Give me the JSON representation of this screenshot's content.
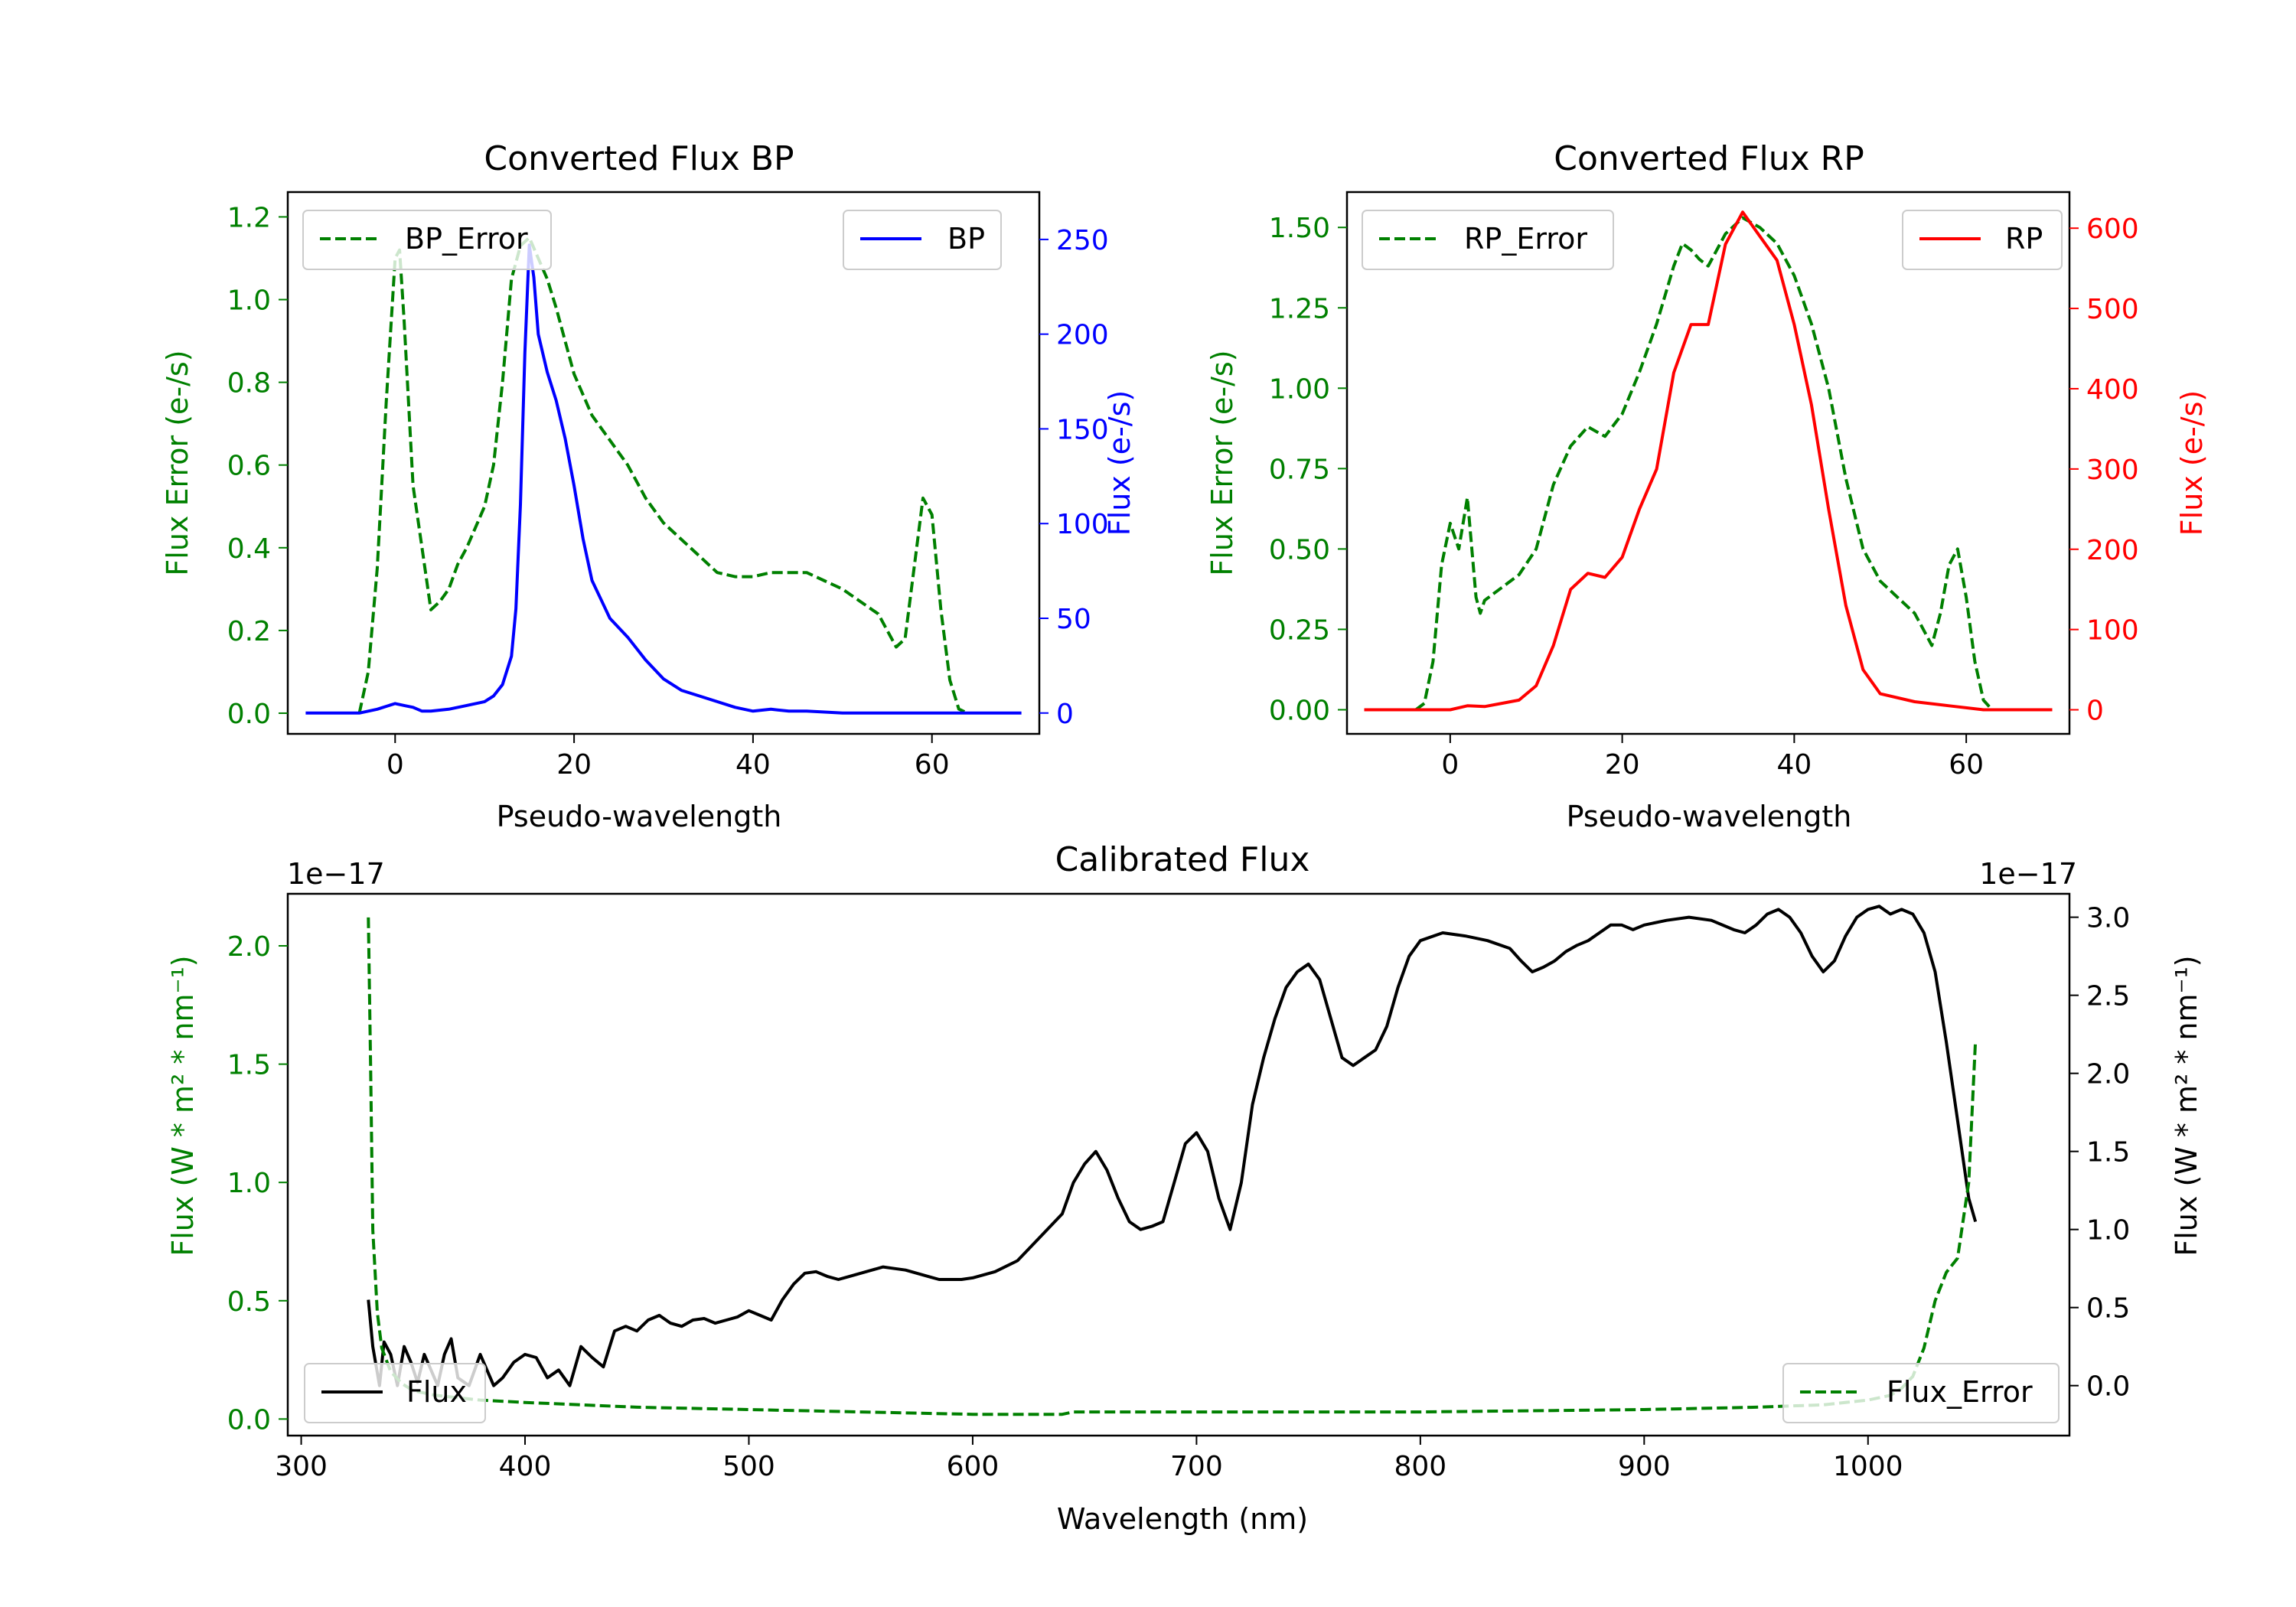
{
  "colors": {
    "bp_error": "#008000",
    "bp": "#0000ff",
    "rp_error": "#008000",
    "rp": "#ff0000",
    "flux": "#000000",
    "flux_error": "#008000"
  },
  "chart_data": [
    {
      "id": "bp",
      "type": "line",
      "title": "Converted Flux BP",
      "xlabel": "Pseudo-wavelength",
      "ylabel_left": "Flux Error (e-/s)",
      "ylabel_right": "Flux (e-/s)",
      "xlim": [
        -12,
        72
      ],
      "ylim_left": [
        -0.05,
        1.26
      ],
      "ylim_right": [
        -11,
        275
      ],
      "xticks": [
        0,
        20,
        40,
        60
      ],
      "yticks_left": [
        0.0,
        0.2,
        0.4,
        0.6,
        0.8,
        1.0,
        1.2
      ],
      "yticks_left_labels": [
        "0.0",
        "0.2",
        "0.4",
        "0.6",
        "0.8",
        "1.0",
        "1.2"
      ],
      "yticks_right": [
        0,
        50,
        100,
        150,
        200,
        250
      ],
      "yticks_right_labels": [
        "0",
        "50",
        "100",
        "150",
        "200",
        "250"
      ],
      "legend_left": {
        "label": "BP_Error",
        "loc": "upper left"
      },
      "legend_right": {
        "label": "BP",
        "loc": "upper right"
      },
      "series": [
        {
          "name": "BP_Error",
          "axis": "left",
          "style": "dashed",
          "color": "#008000",
          "x": [
            -4,
            -3,
            -2,
            -1,
            0,
            0.5,
            1,
            2,
            3,
            4,
            5,
            6,
            7,
            8,
            9,
            10,
            11,
            12,
            13,
            14,
            15,
            16,
            17,
            18,
            19,
            20,
            22,
            24,
            26,
            28,
            30,
            32,
            34,
            36,
            38,
            40,
            42,
            44,
            46,
            48,
            50,
            52,
            54,
            55,
            56,
            57,
            58,
            59,
            60,
            61,
            62,
            63,
            64
          ],
          "y": [
            0.0,
            0.1,
            0.35,
            0.75,
            1.1,
            1.12,
            0.95,
            0.55,
            0.4,
            0.25,
            0.27,
            0.3,
            0.36,
            0.4,
            0.45,
            0.5,
            0.6,
            0.8,
            1.05,
            1.13,
            1.15,
            1.1,
            1.05,
            0.98,
            0.9,
            0.82,
            0.72,
            0.66,
            0.6,
            0.52,
            0.46,
            0.42,
            0.38,
            0.34,
            0.33,
            0.33,
            0.34,
            0.34,
            0.34,
            0.32,
            0.3,
            0.27,
            0.24,
            0.2,
            0.16,
            0.18,
            0.35,
            0.52,
            0.48,
            0.25,
            0.08,
            0.01,
            0.0
          ]
        },
        {
          "name": "BP",
          "axis": "right",
          "style": "solid",
          "color": "#0000ff",
          "x": [
            -10,
            -6,
            -4,
            -2,
            0,
            1,
            2,
            3,
            4,
            6,
            8,
            10,
            11,
            12,
            13,
            13.5,
            14,
            14.5,
            15,
            15.5,
            16,
            17,
            18,
            19,
            20,
            21,
            22,
            23,
            24,
            26,
            28,
            30,
            32,
            34,
            36,
            38,
            40,
            42,
            44,
            46,
            50,
            55,
            60,
            65,
            70
          ],
          "y": [
            0,
            0,
            0,
            2,
            5,
            4,
            3,
            1,
            1,
            2,
            4,
            6,
            9,
            15,
            30,
            55,
            110,
            190,
            247,
            230,
            200,
            180,
            165,
            145,
            120,
            92,
            70,
            60,
            50,
            40,
            28,
            18,
            12,
            9,
            6,
            3,
            1,
            2,
            1,
            1,
            0,
            0,
            0,
            0,
            0
          ]
        }
      ]
    },
    {
      "id": "rp",
      "type": "line",
      "title": "Converted Flux RP",
      "xlabel": "Pseudo-wavelength",
      "ylabel_left": "Flux Error (e-/s)",
      "ylabel_right": "Flux (e-/s)",
      "xlim": [
        -12,
        72
      ],
      "ylim_left": [
        -0.075,
        1.61
      ],
      "ylim_right": [
        -30,
        645
      ],
      "xticks": [
        0,
        20,
        40,
        60
      ],
      "yticks_left": [
        0.0,
        0.25,
        0.5,
        0.75,
        1.0,
        1.25,
        1.5
      ],
      "yticks_left_labels": [
        "0.00",
        "0.25",
        "0.50",
        "0.75",
        "1.00",
        "1.25",
        "1.50"
      ],
      "yticks_right": [
        0,
        100,
        200,
        300,
        400,
        500,
        600
      ],
      "yticks_right_labels": [
        "0",
        "100",
        "200",
        "300",
        "400",
        "500",
        "600"
      ],
      "legend_left": {
        "label": "RP_Error",
        "loc": "upper left"
      },
      "legend_right": {
        "label": "RP",
        "loc": "upper right"
      },
      "series": [
        {
          "name": "RP_Error",
          "axis": "left",
          "style": "dashed",
          "color": "#008000",
          "x": [
            -4,
            -3,
            -2,
            -1,
            0,
            1,
            2,
            3,
            3.5,
            4,
            5,
            6,
            8,
            10,
            12,
            14,
            16,
            18,
            20,
            22,
            24,
            26,
            27,
            28,
            29,
            30,
            32,
            34,
            36,
            38,
            40,
            42,
            44,
            46,
            48,
            50,
            52,
            54,
            55,
            56,
            57,
            58,
            59,
            60,
            61,
            62,
            63,
            64
          ],
          "y": [
            0.0,
            0.02,
            0.15,
            0.45,
            0.58,
            0.5,
            0.66,
            0.35,
            0.3,
            0.34,
            0.36,
            0.38,
            0.42,
            0.5,
            0.7,
            0.82,
            0.88,
            0.85,
            0.92,
            1.05,
            1.2,
            1.38,
            1.45,
            1.43,
            1.4,
            1.38,
            1.48,
            1.53,
            1.5,
            1.45,
            1.35,
            1.2,
            1.0,
            0.72,
            0.5,
            0.4,
            0.35,
            0.3,
            0.25,
            0.2,
            0.3,
            0.45,
            0.5,
            0.35,
            0.15,
            0.03,
            0.0,
            0.0
          ]
        },
        {
          "name": "RP",
          "axis": "right",
          "style": "solid",
          "color": "#ff0000",
          "x": [
            -10,
            -5,
            0,
            2,
            4,
            6,
            8,
            10,
            12,
            14,
            16,
            18,
            20,
            22,
            24,
            26,
            28,
            30,
            32,
            34,
            36,
            38,
            40,
            42,
            44,
            46,
            48,
            50,
            54,
            58,
            62,
            66,
            70
          ],
          "y": [
            0,
            0,
            0,
            5,
            4,
            8,
            12,
            30,
            80,
            150,
            170,
            165,
            190,
            250,
            300,
            420,
            480,
            480,
            580,
            620,
            590,
            560,
            480,
            380,
            250,
            130,
            50,
            20,
            10,
            5,
            0,
            0,
            0
          ]
        }
      ]
    },
    {
      "id": "calibrated",
      "type": "line",
      "title": "Calibrated Flux",
      "xlabel": "Wavelength (nm)",
      "ylabel_left": "Flux (W * m² * nm⁻¹)",
      "ylabel_right": "Flux (W * m² * nm⁻¹)",
      "offset_left": "1e−17",
      "offset_right": "1e−17",
      "xlim": [
        294,
        1090
      ],
      "ylim_left": [
        -0.07,
        2.22
      ],
      "ylim_right": [
        -0.32,
        3.15
      ],
      "xticks": [
        300,
        400,
        500,
        600,
        700,
        800,
        900,
        1000
      ],
      "yticks_left": [
        0.0,
        0.5,
        1.0,
        1.5,
        2.0
      ],
      "yticks_left_labels": [
        "0.0",
        "0.5",
        "1.0",
        "1.5",
        "2.0"
      ],
      "yticks_right": [
        0.0,
        0.5,
        1.0,
        1.5,
        2.0,
        2.5,
        3.0
      ],
      "yticks_right_labels": [
        "0.0",
        "0.5",
        "1.0",
        "1.5",
        "2.0",
        "2.5",
        "3.0"
      ],
      "legend_left": {
        "label": "Flux",
        "loc": "lower left"
      },
      "legend_right": {
        "label": "Flux_Error",
        "loc": "lower right"
      },
      "series": [
        {
          "name": "Flux",
          "axis": "right",
          "style": "solid",
          "color": "#000000",
          "x": [
            330,
            332,
            335,
            337,
            340,
            343,
            346,
            349,
            352,
            355,
            358,
            361,
            364,
            367,
            370,
            375,
            380,
            383,
            386,
            390,
            395,
            400,
            405,
            410,
            415,
            420,
            425,
            430,
            435,
            440,
            445,
            450,
            455,
            460,
            465,
            470,
            475,
            480,
            485,
            490,
            495,
            500,
            505,
            510,
            515,
            520,
            525,
            530,
            535,
            540,
            545,
            550,
            555,
            560,
            565,
            570,
            575,
            580,
            585,
            590,
            595,
            600,
            610,
            620,
            630,
            640,
            645,
            650,
            655,
            660,
            665,
            670,
            675,
            680,
            685,
            690,
            695,
            700,
            705,
            710,
            715,
            720,
            725,
            730,
            735,
            740,
            745,
            750,
            755,
            760,
            765,
            770,
            775,
            780,
            785,
            790,
            795,
            800,
            810,
            820,
            830,
            840,
            845,
            850,
            855,
            860,
            865,
            870,
            875,
            880,
            885,
            890,
            895,
            900,
            910,
            920,
            930,
            940,
            945,
            950,
            955,
            960,
            965,
            970,
            975,
            980,
            985,
            990,
            995,
            1000,
            1005,
            1010,
            1015,
            1020,
            1025,
            1030,
            1035,
            1040,
            1045,
            1048
          ],
          "y": [
            0.55,
            0.25,
            0.0,
            0.28,
            0.2,
            0.0,
            0.25,
            0.15,
            0.02,
            0.2,
            0.1,
            0.0,
            0.2,
            0.3,
            0.05,
            0.0,
            0.2,
            0.1,
            0.0,
            0.05,
            0.15,
            0.2,
            0.18,
            0.05,
            0.1,
            0.0,
            0.25,
            0.18,
            0.12,
            0.35,
            0.38,
            0.35,
            0.42,
            0.45,
            0.4,
            0.38,
            0.42,
            0.43,
            0.4,
            0.42,
            0.44,
            0.48,
            0.45,
            0.42,
            0.55,
            0.65,
            0.72,
            0.73,
            0.7,
            0.68,
            0.7,
            0.72,
            0.74,
            0.76,
            0.75,
            0.74,
            0.72,
            0.7,
            0.68,
            0.68,
            0.68,
            0.69,
            0.73,
            0.8,
            0.95,
            1.1,
            1.3,
            1.42,
            1.5,
            1.38,
            1.2,
            1.05,
            1.0,
            1.02,
            1.05,
            1.3,
            1.55,
            1.62,
            1.5,
            1.2,
            1.0,
            1.3,
            1.8,
            2.1,
            2.35,
            2.55,
            2.65,
            2.7,
            2.6,
            2.35,
            2.1,
            2.05,
            2.1,
            2.15,
            2.3,
            2.55,
            2.75,
            2.85,
            2.9,
            2.88,
            2.85,
            2.8,
            2.72,
            2.65,
            2.68,
            2.72,
            2.78,
            2.82,
            2.85,
            2.9,
            2.95,
            2.95,
            2.92,
            2.95,
            2.98,
            3.0,
            2.98,
            2.92,
            2.9,
            2.95,
            3.02,
            3.05,
            3.0,
            2.9,
            2.75,
            2.65,
            2.72,
            2.88,
            3.0,
            3.05,
            3.07,
            3.02,
            3.05,
            3.02,
            2.9,
            2.65,
            2.2,
            1.7,
            1.2,
            1.05
          ]
        },
        {
          "name": "Flux_Error",
          "axis": "left",
          "style": "dashed",
          "color": "#008000",
          "x": [
            330,
            331,
            332,
            334,
            336,
            340,
            345,
            350,
            360,
            370,
            380,
            400,
            450,
            500,
            550,
            600,
            640,
            645,
            700,
            800,
            900,
            950,
            980,
            1000,
            1010,
            1015,
            1020,
            1025,
            1030,
            1035,
            1040,
            1045,
            1048
          ],
          "y": [
            2.12,
            1.5,
            0.8,
            0.45,
            0.3,
            0.2,
            0.15,
            0.12,
            0.1,
            0.09,
            0.08,
            0.07,
            0.05,
            0.04,
            0.03,
            0.02,
            0.02,
            0.03,
            0.03,
            0.03,
            0.04,
            0.05,
            0.06,
            0.08,
            0.1,
            0.13,
            0.18,
            0.3,
            0.5,
            0.62,
            0.68,
            1.0,
            1.6
          ]
        }
      ]
    }
  ]
}
